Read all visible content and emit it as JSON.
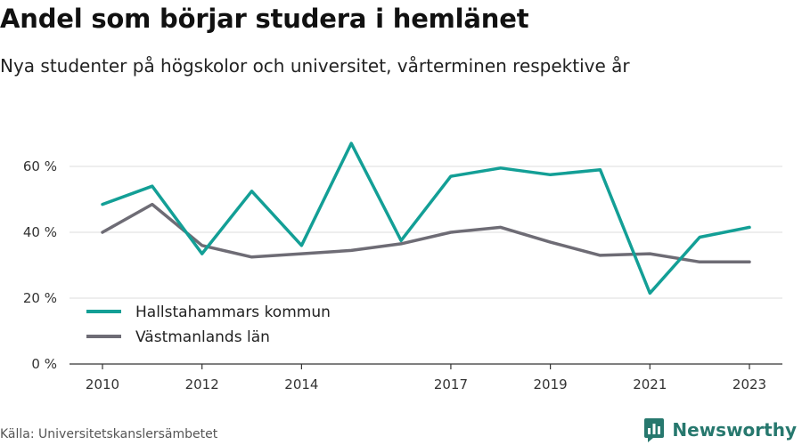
{
  "header": {
    "title": "Andel som börjar studera i hemlänet",
    "subtitle": "Nya studenter på högskolor och universitet, vårterminen respektive år"
  },
  "footer": {
    "source": "Källa: Universitetskanslersämbetet",
    "brand": "Newsworthy",
    "brand_icon": "chart-logo-icon",
    "brand_color": "#27786e"
  },
  "chart_data": {
    "type": "line",
    "title": "Andel som börjar studera i hemlänet",
    "subtitle": "Nya studenter på högskolor och universitet, vårterminen respektive år",
    "xlabel": "",
    "ylabel": "",
    "x": [
      2010,
      2011,
      2012,
      2013,
      2014,
      2015,
      2016,
      2017,
      2018,
      2019,
      2020,
      2021,
      2022,
      2023
    ],
    "xlim": [
      2010,
      2023
    ],
    "ylim": [
      0,
      70
    ],
    "y_ticks": [
      0,
      20,
      40,
      60
    ],
    "y_tick_labels": [
      "0 %",
      "20 %",
      "40 %",
      "60 %"
    ],
    "x_ticks": [
      2010,
      2012,
      2014,
      2017,
      2019,
      2021,
      2023
    ],
    "x_tick_labels": [
      "2010",
      "2012",
      "2014",
      "2017",
      "2019",
      "2021",
      "2023"
    ],
    "grid": true,
    "legend_position": "bottom-left",
    "series": [
      {
        "name": "Hallstahammars kommun",
        "color": "#139f96",
        "values": [
          48.5,
          54,
          33.5,
          52.5,
          36,
          67,
          37.5,
          57,
          59.5,
          57.5,
          59,
          21.5,
          38.5,
          41.5
        ]
      },
      {
        "name": "Västmanlands län",
        "color": "#6e6c75",
        "values": [
          40,
          48.5,
          36,
          32.5,
          33.5,
          34.5,
          36.5,
          40,
          41.5,
          37,
          33,
          33.5,
          31,
          31
        ]
      }
    ]
  }
}
